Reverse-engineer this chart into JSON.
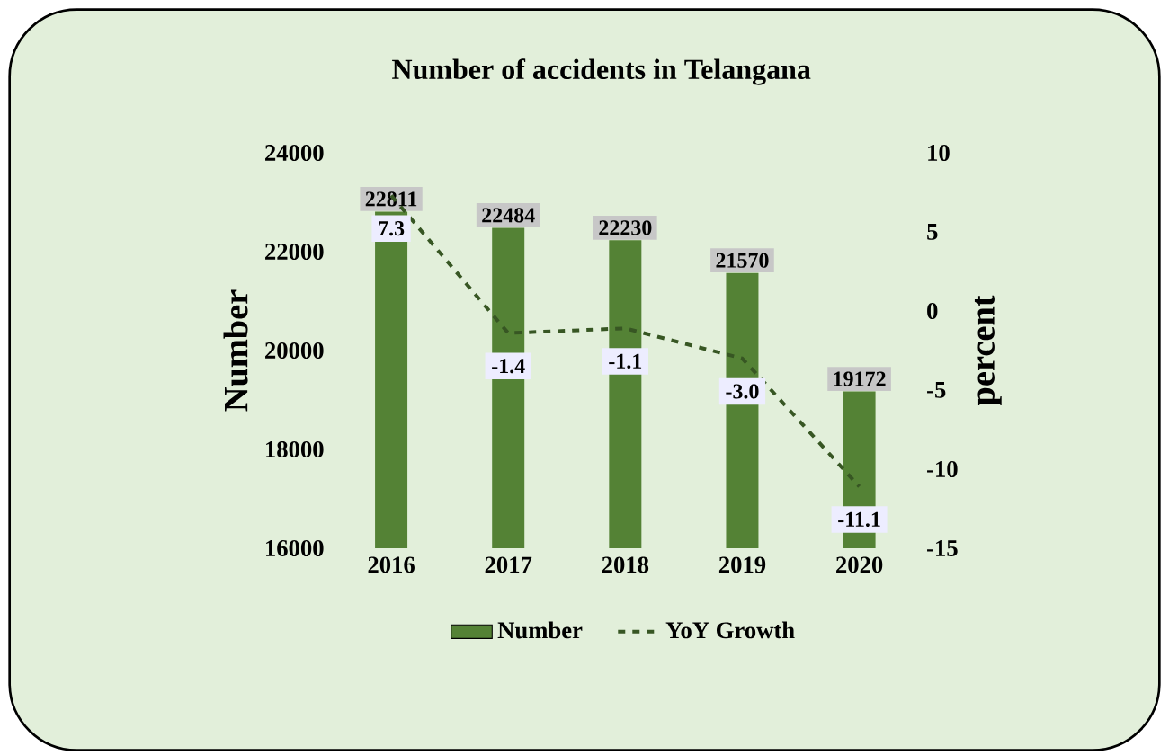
{
  "chart_data": {
    "type": "bar",
    "title": "Number of accidents in Telangana",
    "categories": [
      "2016",
      "2017",
      "2018",
      "2019",
      "2020"
    ],
    "ylabel": "Number",
    "y2label": "percent",
    "ylim": [
      16000,
      24000
    ],
    "yticks": [
      16000,
      18000,
      20000,
      22000,
      24000
    ],
    "y2lim": [
      -15,
      10
    ],
    "y2ticks": [
      -15,
      -10,
      -5,
      0,
      5,
      10
    ],
    "series": [
      {
        "name": "Number",
        "color": "#548235",
        "values": [
          22811,
          22484,
          22230,
          21570,
          19172
        ]
      },
      {
        "name": "YoY Growth",
        "type": "line",
        "axis": "y2",
        "color": "#375623",
        "line_style": "dashed",
        "values": [
          7.3,
          -1.4,
          -1.1,
          -3.0,
          -11.1
        ],
        "value_labels": [
          "7.3",
          "-1.4",
          "-1.1",
          "-3.0",
          "-11.1"
        ]
      }
    ],
    "data_labels": true,
    "legend": "bottom"
  }
}
